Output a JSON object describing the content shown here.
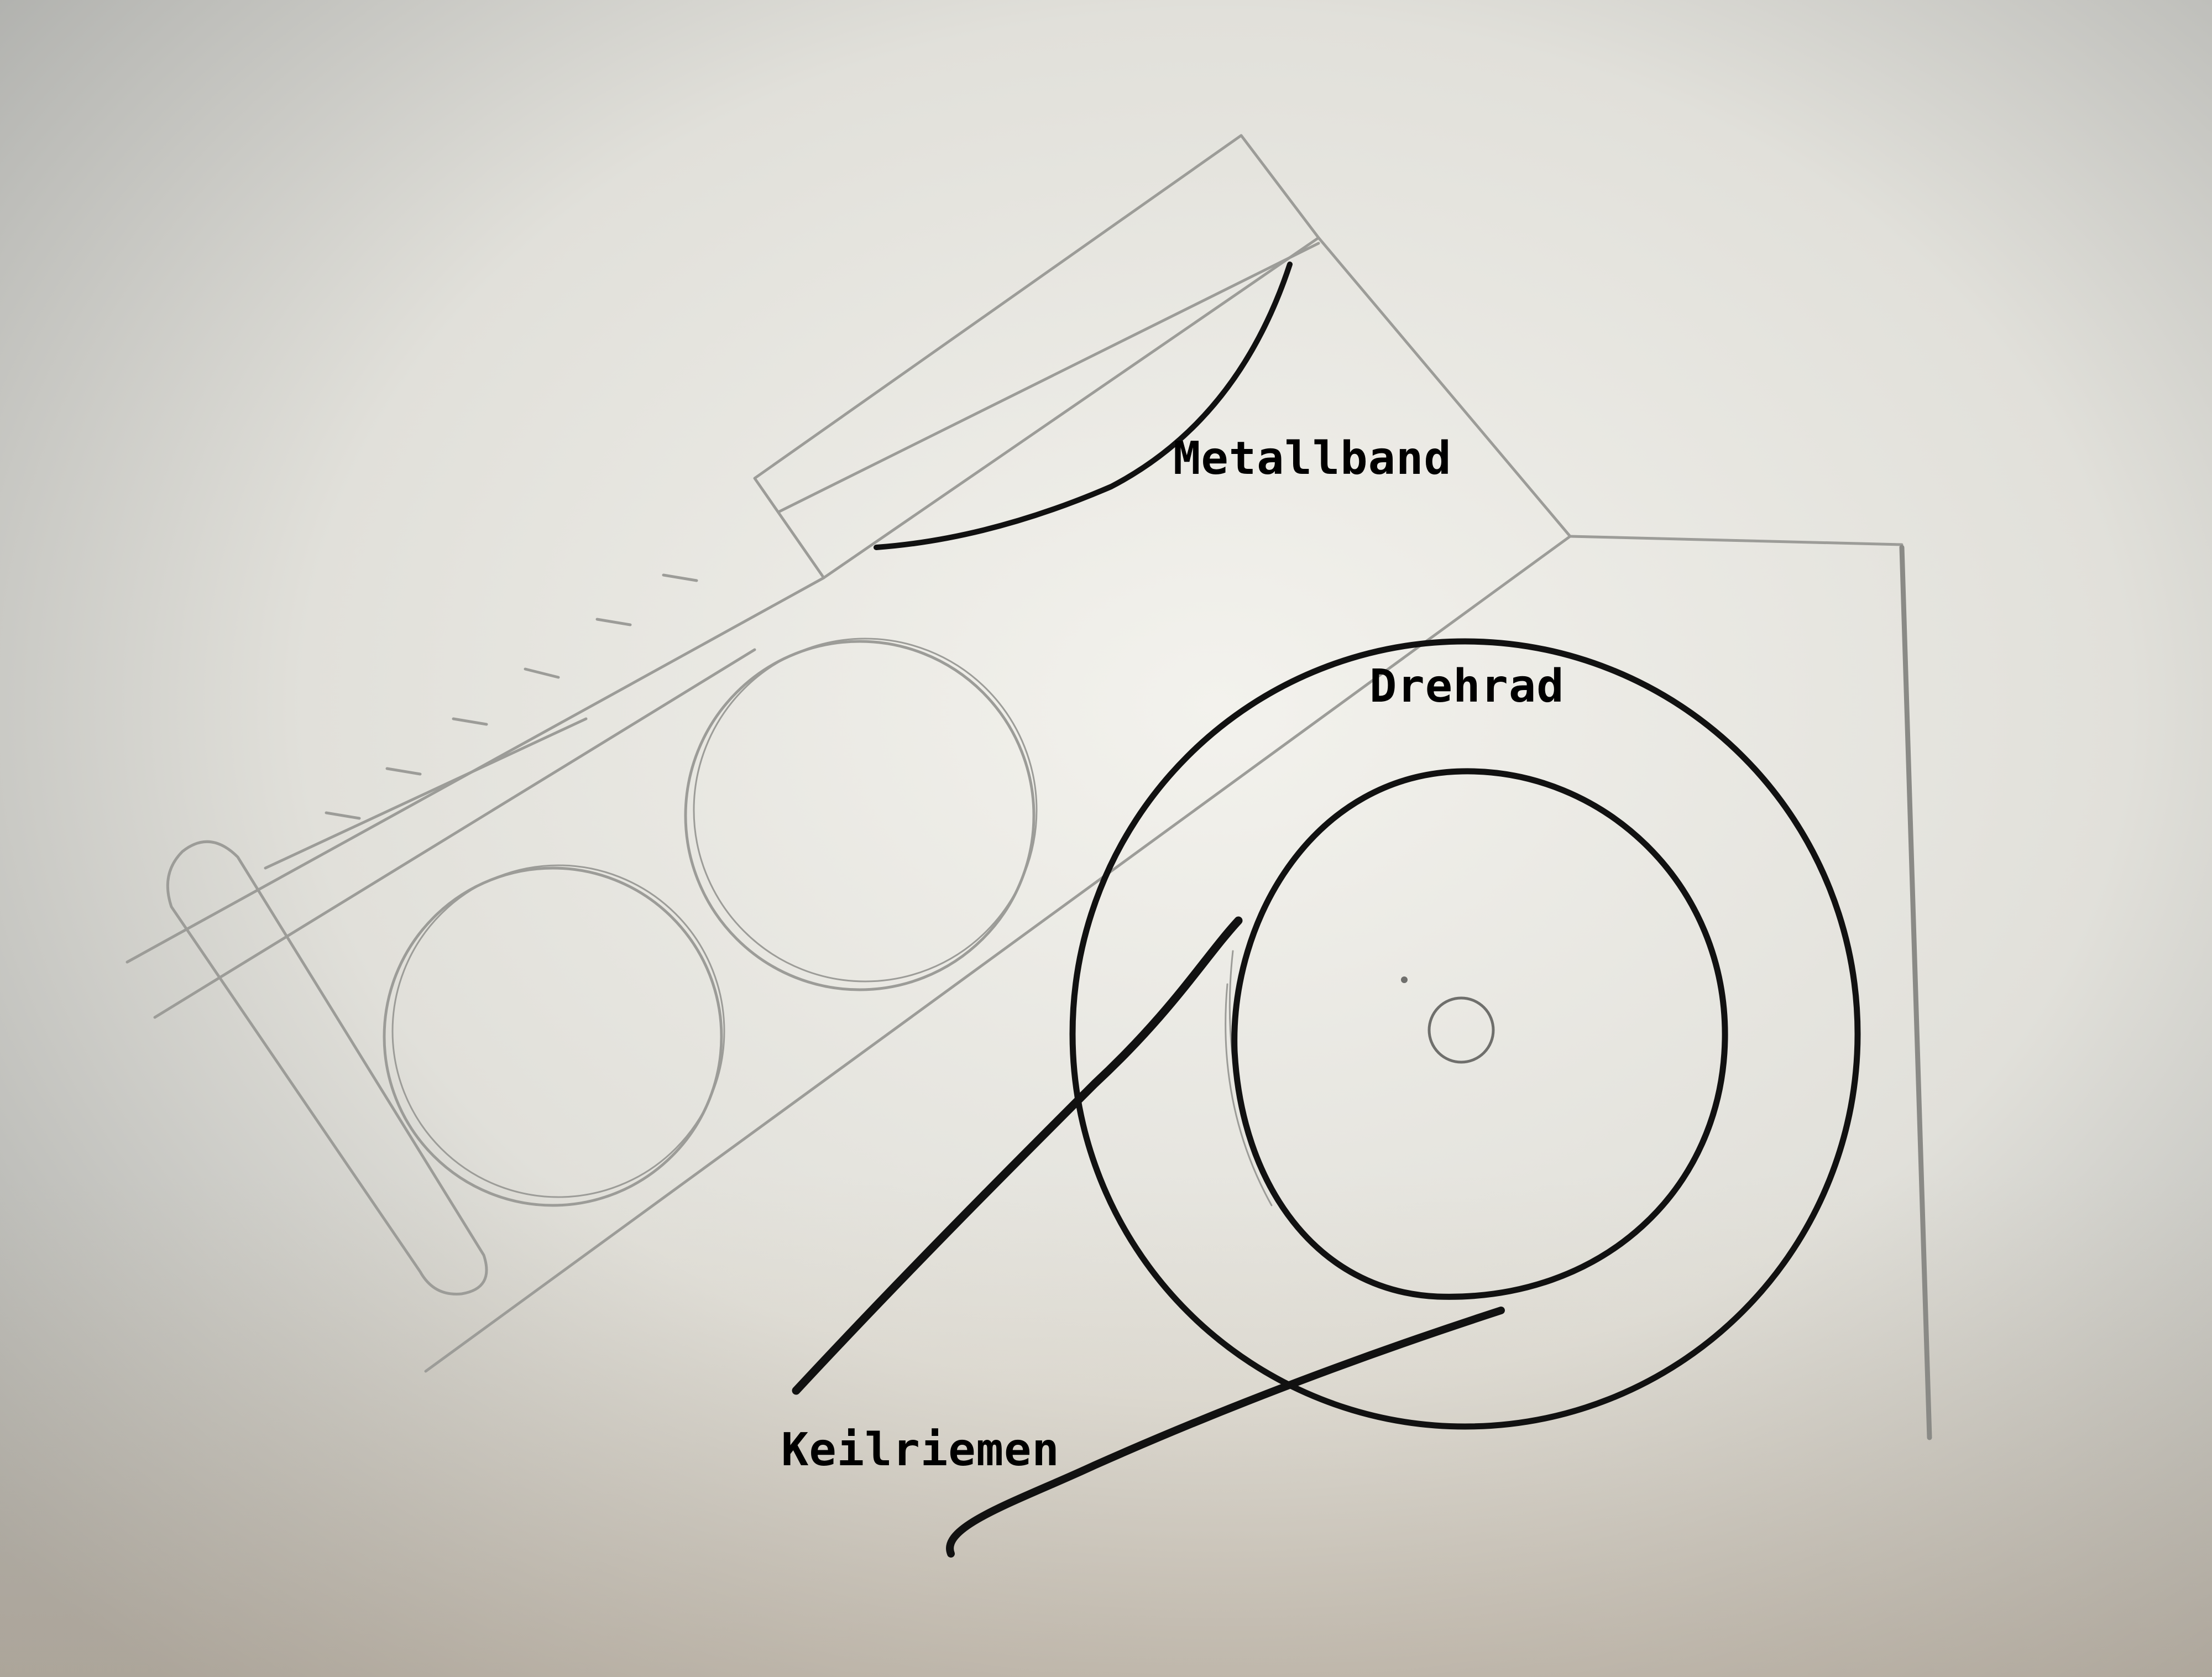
{
  "labels": {
    "metallband": "Metallband",
    "drehrad": "Drehrad",
    "keilriemen": "Keilriemen"
  },
  "colors": {
    "paper_light": "#f2f1ec",
    "paper_mid": "#dcdbd5",
    "paper_dark": "#a9aaa7",
    "pencil": "#9c9c98",
    "pencil_dark": "#6f6f6c",
    "ink": "#111111"
  }
}
